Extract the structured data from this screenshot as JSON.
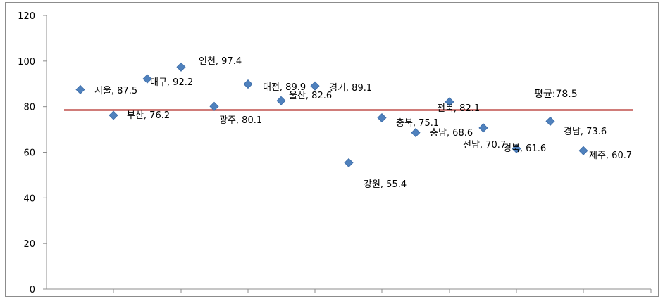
{
  "chart_data": {
    "type": "scatter",
    "title": "",
    "xlabel": "",
    "ylabel": "",
    "ylim": [
      0,
      120
    ],
    "yticks": [
      0,
      20,
      40,
      60,
      80,
      100,
      120
    ],
    "grid": false,
    "legend": "none",
    "series": [
      {
        "marker_color": "#4F81BD",
        "points": [
          {
            "label": "서울, 87.5",
            "x": 1,
            "y": 87.5
          },
          {
            "label": "부산, 76.2",
            "x": 2,
            "y": 76.2
          },
          {
            "label": "대구, 92.2",
            "x": 3,
            "y": 92.2
          },
          {
            "label": "인천, 97.4",
            "x": 4,
            "y": 97.4
          },
          {
            "label": "광주, 80.1",
            "x": 5,
            "y": 80.1
          },
          {
            "label": "대전, 89.9",
            "x": 6,
            "y": 89.9
          },
          {
            "label": "울산, 82.6",
            "x": 7,
            "y": 82.6
          },
          {
            "label": "경기, 89.1",
            "x": 8,
            "y": 89.1
          },
          {
            "label": "강원, 55.4",
            "x": 9,
            "y": 55.4
          },
          {
            "label": "충북, 75.1",
            "x": 10,
            "y": 75.1
          },
          {
            "label": "충남, 68.6",
            "x": 11,
            "y": 68.6
          },
          {
            "label": "전북, 82.1",
            "x": 12,
            "y": 82.1
          },
          {
            "label": "전남, 70.7",
            "x": 13,
            "y": 70.7
          },
          {
            "label": "경북, 61.6",
            "x": 14,
            "y": 61.6
          },
          {
            "label": "경남, 73.6",
            "x": 15,
            "y": 73.6
          },
          {
            "label": "제주, 60.7",
            "x": 16,
            "y": 60.7
          }
        ]
      }
    ],
    "average": {
      "label": "평균:78.5",
      "value": 78.5,
      "color": "#C0504D"
    }
  }
}
